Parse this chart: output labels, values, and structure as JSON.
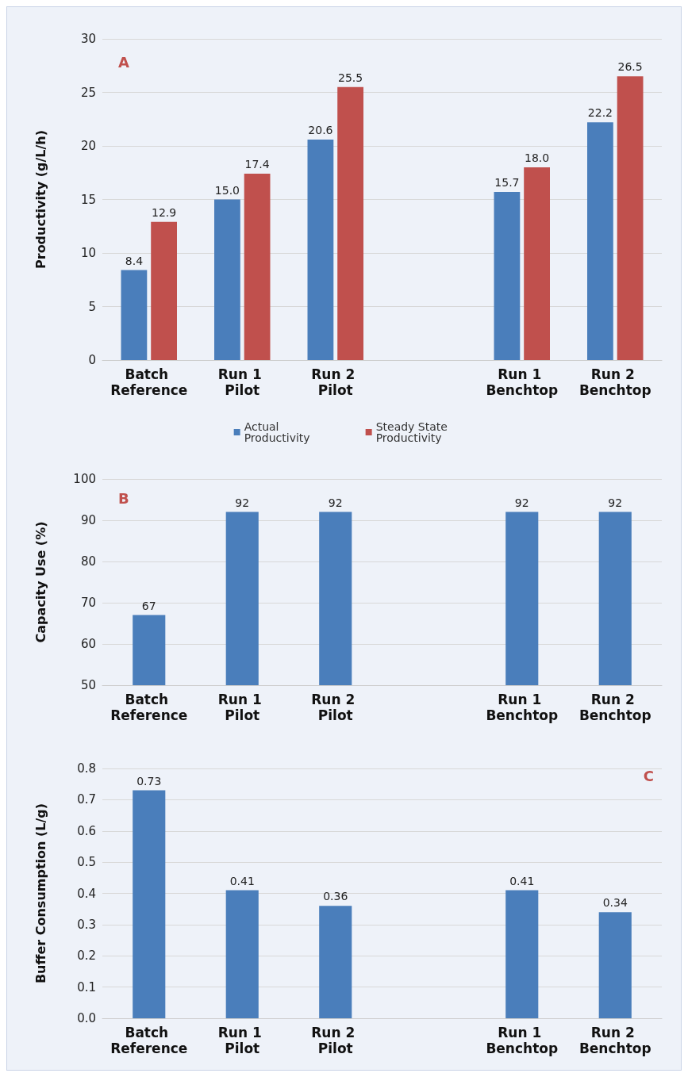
{
  "chart_data": [
    {
      "type": "bar",
      "ylabel": "Productivity (g/L/h)",
      "annotations": [
        "A"
      ],
      "categories": [
        "Batch Reference",
        "Run 1 Pilot",
        "Run 2 Pilot",
        null,
        "Run 1 Benchtop",
        "Run 2 Benchtop"
      ],
      "series": [
        {
          "name": "Actual Productivity",
          "color": "#4a7ebb",
          "values": [
            8.4,
            15.0,
            20.6,
            null,
            15.7,
            22.2
          ],
          "value_labels": [
            "8.4",
            "15.0",
            "20.6",
            null,
            "15.7",
            "22.2"
          ]
        },
        {
          "name": "Steady State Productivity",
          "color": "#c0504d",
          "values": [
            12.9,
            17.4,
            25.5,
            null,
            18.0,
            26.5
          ],
          "value_labels": [
            "12.9",
            "17.4",
            "25.5",
            null,
            "18.0",
            "26.5"
          ]
        }
      ],
      "ylim": [
        0,
        30
      ],
      "yticks": [
        0,
        5,
        10,
        15,
        20,
        25,
        30
      ],
      "grid": "y",
      "legend": "bottom"
    },
    {
      "type": "bar",
      "ylabel": "Capacity Use (%)",
      "annotations": [
        "B"
      ],
      "categories": [
        "Batch Reference",
        "Run 1 Pilot",
        "Run 2 Pilot",
        null,
        "Run 1 Benchtop",
        "Run 2 Benchtop"
      ],
      "values": [
        67,
        92,
        92,
        null,
        92,
        92
      ],
      "color": "#4a7ebb",
      "data_labels": true,
      "ylim": [
        50,
        100
      ],
      "yticks": [
        50,
        60,
        70,
        80,
        90,
        100
      ],
      "grid": "y"
    },
    {
      "type": "bar",
      "ylabel": "Buffer Consumption (L/g)",
      "annotations": [
        "C"
      ],
      "categories": [
        "Batch Reference",
        "Run 1 Pilot",
        "Run 2 Pilot",
        null,
        "Run 1 Benchtop",
        "Run 2 Benchtop"
      ],
      "values": [
        0.73,
        0.41,
        0.36,
        null,
        0.41,
        0.34
      ],
      "color": "#4a7ebb",
      "data_labels": true,
      "ylim": [
        0,
        0.8
      ],
      "yticks": [
        {
          "value": 0,
          "label": "0.0"
        },
        0.1,
        0.2,
        0.3,
        0.4,
        0.5,
        0.6,
        0.7,
        0.8
      ],
      "grid": "y"
    }
  ]
}
